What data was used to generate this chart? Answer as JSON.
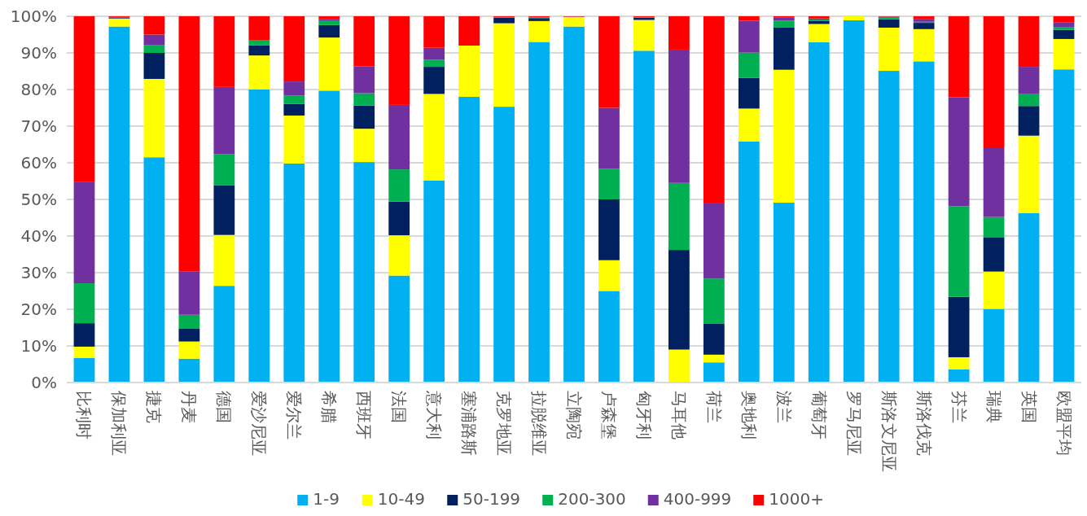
{
  "chart_data": {
    "type": "bar",
    "stacked": true,
    "grid": "y",
    "legend": "bottom",
    "categories": [
      "比利时",
      "保加利亚",
      "捷克",
      "丹麦",
      "德国",
      "爱沙尼亚",
      "爱尔兰",
      "希腊",
      "西班牙",
      "法国",
      "意大利",
      "塞浦路斯",
      "克罗地亚",
      "拉脱维亚",
      "立陶宛",
      "卢森堡",
      "匈牙利",
      "马耳他",
      "荷兰",
      "奥地利",
      "波兰",
      "葡萄牙",
      "罗马尼亚",
      "斯洛文尼亚",
      "斯洛伐克",
      "芬兰",
      "瑞典",
      "英国",
      "欧盟平均"
    ],
    "ylim": [
      0,
      100
    ],
    "yticks": [
      {
        "value": 0,
        "label": "0%"
      },
      {
        "value": 10,
        "label": "10%"
      },
      {
        "value": 20,
        "label": "20%"
      },
      {
        "value": 30,
        "label": "30%"
      },
      {
        "value": 40,
        "label": "40%"
      },
      {
        "value": 50,
        "label": "50%"
      },
      {
        "value": 60,
        "label": "60%"
      },
      {
        "value": 70,
        "label": "70%"
      },
      {
        "value": 80,
        "label": "80%"
      },
      {
        "value": 90,
        "label": "90%"
      },
      {
        "value": 100,
        "label": "100%"
      }
    ],
    "series": [
      {
        "name": "1-9",
        "color": "#00b0f0",
        "values": [
          6.7,
          97.2,
          61.5,
          6.5,
          26.4,
          80.0,
          59.8,
          79.7,
          60.2,
          29.2,
          55.2,
          78.0,
          75.3,
          93.0,
          97.2,
          25.0,
          90.6,
          0,
          5.5,
          65.8,
          49.1,
          92.9,
          98.9,
          85.1,
          87.7,
          3.6,
          20.1,
          46.3,
          85.5
        ]
      },
      {
        "name": "10-49",
        "color": "#ffff00",
        "values": [
          3.1,
          2.2,
          21.4,
          4.7,
          13.9,
          9.3,
          13.1,
          14.5,
          9.1,
          11.0,
          23.6,
          14.0,
          22.8,
          5.7,
          2.6,
          8.4,
          8.4,
          9.0,
          2.1,
          9.0,
          36.3,
          5.0,
          1.1,
          11.8,
          8.8,
          3.3,
          10.2,
          21.1,
          8.3
        ]
      },
      {
        "name": "50-199",
        "color": "#002060",
        "values": [
          6.4,
          0.3,
          7.1,
          3.6,
          13.5,
          2.8,
          3.2,
          3.4,
          6.3,
          9.2,
          7.4,
          0,
          1.5,
          0.8,
          0,
          16.6,
          0.6,
          27.2,
          8.4,
          8.4,
          11.5,
          0.9,
          0,
          2.3,
          1.7,
          16.5,
          9.4,
          8.1,
          2.5
        ]
      },
      {
        "name": "200-300",
        "color": "#00b050",
        "values": [
          10.9,
          0.1,
          2.2,
          3.7,
          8.6,
          1.3,
          2.3,
          1.3,
          3.4,
          8.8,
          1.9,
          0,
          0.2,
          0.2,
          0,
          8.4,
          0.1,
          18.3,
          12.4,
          6.9,
          1.9,
          0.3,
          0,
          0.6,
          0.3,
          24.7,
          5.5,
          3.4,
          0.8
        ]
      },
      {
        "name": "400-999",
        "color": "#7030a0",
        "values": [
          27.6,
          0,
          2.8,
          11.9,
          18.3,
          0,
          3.8,
          0.4,
          7.3,
          17.6,
          3.3,
          0,
          0,
          0.1,
          0.1,
          16.6,
          0.1,
          36.4,
          20.7,
          8.7,
          0.8,
          0.3,
          0,
          0.1,
          0.8,
          29.8,
          18.8,
          7.3,
          1.3
        ]
      },
      {
        "name": "1000+",
        "color": "#ff0000",
        "values": [
          45.3,
          0.2,
          5.0,
          69.6,
          19.3,
          6.6,
          17.8,
          0.7,
          13.7,
          24.2,
          8.6,
          8.0,
          0.2,
          0.2,
          0.1,
          25.0,
          0.2,
          9.1,
          50.9,
          1.2,
          0.4,
          0.6,
          0,
          0.1,
          0.7,
          22.1,
          36.0,
          13.8,
          1.6
        ]
      }
    ]
  }
}
